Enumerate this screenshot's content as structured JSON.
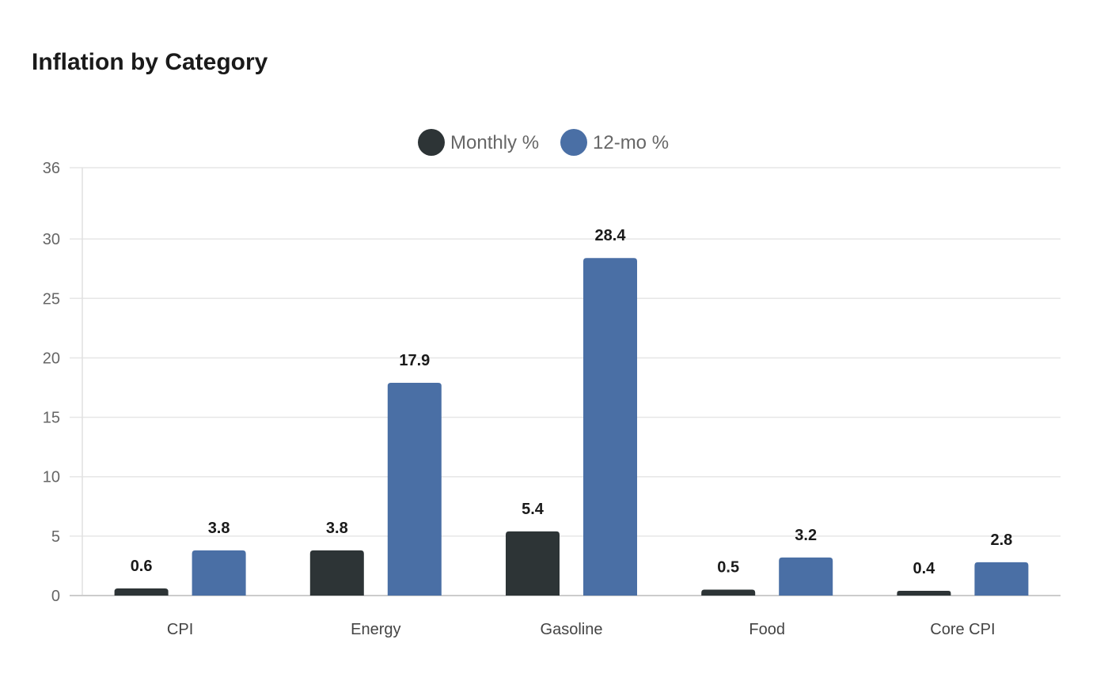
{
  "chart_data": {
    "type": "bar",
    "title": "Inflation by Category",
    "xlabel": "",
    "ylabel": "",
    "categories": [
      "CPI",
      "Energy",
      "Gasoline",
      "Food",
      "Core CPI"
    ],
    "series": [
      {
        "name": "Monthly %",
        "values": [
          0.6,
          3.8,
          5.4,
          0.5,
          0.4
        ],
        "color": "#2d3436"
      },
      {
        "name": "12-mo %",
        "values": [
          3.8,
          17.9,
          28.4,
          3.2,
          2.8
        ],
        "color": "#4a6fa5"
      }
    ],
    "ylim": [
      0,
      36
    ],
    "yticks": [
      0,
      5,
      10,
      15,
      20,
      25,
      30,
      36
    ],
    "grid": true,
    "legend": "top-center",
    "data_labels": true
  }
}
